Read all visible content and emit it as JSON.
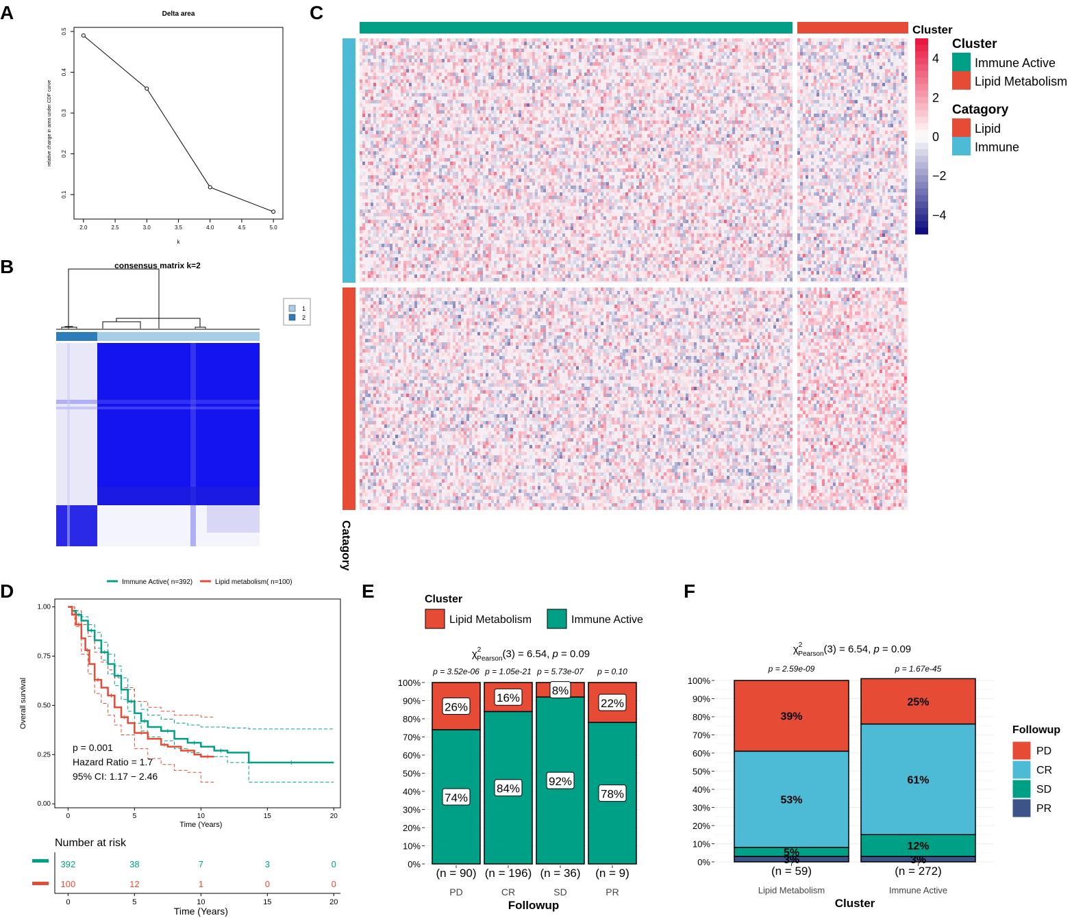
{
  "panels": {
    "A": "A",
    "B": "B",
    "C": "C",
    "D": "D",
    "E": "E",
    "F": "F"
  },
  "colors": {
    "immune_active": "#00A087",
    "lipid": "#E64B35",
    "cr": "#4DBBD5",
    "pr": "#3C5488",
    "consensus_dark": "#2E7DB9",
    "consensus_light": "#A8CDE6",
    "consensus_fill": "#1414F0",
    "hm_red": "#E8103A",
    "hm_blue": "#08087A"
  },
  "chart_data": [
    {
      "id": "A",
      "type": "line",
      "title": "Delta area",
      "xlabel": "k",
      "ylabel": "relative change in area under CDF curve",
      "x": [
        2,
        3,
        4,
        5
      ],
      "y": [
        0.49,
        0.36,
        0.118,
        0.058
      ],
      "xlim": [
        1.85,
        5.15
      ],
      "ylim": [
        0.04,
        0.51
      ],
      "xticks": [
        2.0,
        2.5,
        3.0,
        3.5,
        4.0,
        4.5,
        5.0
      ],
      "xtick_labels": [
        "2.0",
        "2.5",
        "3.0",
        "3.5",
        "4.0",
        "4.5",
        "5.0"
      ],
      "yticks": [
        0.1,
        0.2,
        0.3,
        0.4,
        0.5
      ],
      "ytick_labels": [
        "0.1",
        "0.2",
        "0.3",
        "0.4",
        "0.5"
      ]
    },
    {
      "id": "B",
      "type": "heatmap",
      "title": "consensus matrix k=2",
      "legend": [
        {
          "label": "1",
          "color": "#A8CDE6"
        },
        {
          "label": "2",
          "color": "#2E7DB9"
        }
      ]
    },
    {
      "id": "C",
      "type": "heatmap",
      "top_annotation_label": "Cluster",
      "side_annotation_label": "Catagory",
      "column_groups": [
        {
          "name": "Immune Active",
          "fraction": 0.8
        },
        {
          "name": "Lipid Metabolism",
          "fraction": 0.2
        }
      ],
      "row_groups": [
        {
          "name": "Immune",
          "fraction": 0.52
        },
        {
          "name": "Lipid",
          "fraction": 0.48
        }
      ],
      "colorbar": {
        "ticks": [
          4,
          2,
          0,
          -2,
          -4
        ],
        "tick_labels": [
          "4",
          "2",
          "0",
          "−2",
          "−4"
        ],
        "range": [
          -5,
          5
        ]
      },
      "legend": {
        "cluster_title": "Cluster",
        "cluster_items": [
          {
            "label": "Immune Active",
            "color": "#00A087"
          },
          {
            "label": "Lipid Metabolism",
            "color": "#E64B35"
          }
        ],
        "category_title": "Catagory",
        "category_items": [
          {
            "label": "Lipid",
            "color": "#E64B35"
          },
          {
            "label": "Immune",
            "color": "#4DBBD5"
          }
        ]
      }
    },
    {
      "id": "D",
      "type": "line",
      "xlabel": "Time (Years)",
      "ylabel": "Overall survival",
      "xlim": [
        -1,
        20.5
      ],
      "ylim": [
        -0.02,
        1.04
      ],
      "xticks": [
        0,
        5,
        10,
        15,
        20
      ],
      "xtick_labels": [
        "0",
        "5",
        "10",
        "15",
        "20"
      ],
      "yticks": [
        0,
        0.25,
        0.5,
        0.75,
        1
      ],
      "ytick_labels": [
        "0.00",
        "0.25",
        "0.50",
        "0.75",
        "1.00"
      ],
      "legend": [
        "Immune Active( n=392)",
        "Lipid metabolism( n=100)"
      ],
      "series": [
        {
          "name": "Immune Active( n=392)",
          "x": [
            0,
            0.3,
            0.6,
            1,
            1.5,
            2,
            2.5,
            3,
            3.5,
            4,
            4.5,
            5,
            5.5,
            6,
            7,
            8,
            9,
            10,
            11,
            12,
            13.6,
            20
          ],
          "y": [
            1,
            0.98,
            0.96,
            0.93,
            0.88,
            0.83,
            0.77,
            0.71,
            0.65,
            0.58,
            0.52,
            0.46,
            0.42,
            0.39,
            0.37,
            0.33,
            0.31,
            0.29,
            0.27,
            0.26,
            0.21,
            0.21
          ]
        },
        {
          "name": "Lipid metabolism( n=100)",
          "x": [
            0,
            0.3,
            0.6,
            1,
            1.3,
            1.6,
            2,
            2.5,
            3,
            3.5,
            4,
            4.5,
            5,
            6,
            7,
            7.5,
            8.5,
            9.5,
            10,
            11
          ],
          "y": [
            1,
            0.96,
            0.91,
            0.84,
            0.78,
            0.71,
            0.63,
            0.59,
            0.55,
            0.49,
            0.44,
            0.41,
            0.36,
            0.33,
            0.3,
            0.29,
            0.27,
            0.25,
            0.24,
            0.24
          ]
        }
      ],
      "ci": [
        {
          "series": "Immune Active( n=392)",
          "x": [
            0,
            0.5,
            1,
            1.5,
            2,
            2.5,
            3,
            3.5,
            4,
            4.5,
            5,
            5.5,
            6,
            7,
            8,
            9,
            10,
            12,
            13.6,
            20
          ],
          "upper": [
            1,
            0.98,
            0.95,
            0.91,
            0.87,
            0.82,
            0.76,
            0.7,
            0.64,
            0.58,
            0.52,
            0.48,
            0.45,
            0.43,
            0.41,
            0.4,
            0.39,
            0.385,
            0.38,
            0.38
          ],
          "lower": [
            1,
            0.96,
            0.91,
            0.85,
            0.79,
            0.73,
            0.66,
            0.6,
            0.53,
            0.47,
            0.41,
            0.37,
            0.34,
            0.32,
            0.28,
            0.26,
            0.24,
            0.21,
            0.11,
            0.11
          ]
        },
        {
          "series": "Lipid metabolism( n=100)",
          "x": [
            0,
            0.5,
            1,
            1.5,
            2,
            2.5,
            3,
            3.5,
            4,
            5,
            6,
            7,
            8,
            9,
            10,
            11
          ],
          "upper": [
            1,
            0.98,
            0.91,
            0.85,
            0.77,
            0.72,
            0.68,
            0.64,
            0.59,
            0.52,
            0.49,
            0.47,
            0.45,
            0.45,
            0.44,
            0.44
          ],
          "lower": [
            1,
            0.9,
            0.76,
            0.66,
            0.56,
            0.51,
            0.45,
            0.4,
            0.35,
            0.28,
            0.23,
            0.2,
            0.17,
            0.16,
            0.11,
            0.11
          ]
        }
      ],
      "annotations": [
        "p = 0.001",
        "Hazard Ratio = 1.7",
        "95% CI: 1.17 − 2.46"
      ],
      "risk_table": {
        "title": "Number at risk",
        "xlabel": "Time (Years)",
        "times": [
          0,
          5,
          10,
          15,
          20
        ],
        "rows": [
          {
            "name": "Immune Active( n=392)",
            "values": [
              "392",
              "38",
              "7",
              "3",
              "0"
            ]
          },
          {
            "name": "Lipid metabolism( n=100)",
            "values": [
              "100",
              "12",
              "1",
              "0",
              "0"
            ]
          }
        ]
      }
    },
    {
      "id": "E",
      "type": "bar",
      "xlabel": "Followup",
      "legend_title": "Cluster",
      "legend": [
        "Lipid Metabolism",
        "Immune Active"
      ],
      "stat": "χ²Pearson(3) = 6.54, p = 0.09",
      "stat_parts": {
        "chi": "χ",
        "sup": "2",
        "sub": "Pearson",
        "rest": "(3) = 6.54, ",
        "p": "p",
        "rest2": " = 0.09"
      },
      "categories": [
        "PD",
        "CR",
        "SD",
        "PR"
      ],
      "counts": [
        "(n = 90)",
        "(n = 196)",
        "(n = 36)",
        "(n = 9)"
      ],
      "pvalues": [
        "p = 3.52e-06",
        "p = 1.05e-21",
        "p = 5.73e-07",
        "p = 0.10"
      ],
      "series": [
        {
          "name": "Immune Active",
          "values": [
            74,
            84,
            92,
            78
          ],
          "labels": [
            "74%",
            "84%",
            "92%",
            "78%"
          ]
        },
        {
          "name": "Lipid Metabolism",
          "values": [
            26,
            16,
            8,
            22
          ],
          "labels": [
            "26%",
            "16%",
            "8%",
            "22%"
          ]
        }
      ],
      "ylim": [
        0,
        100
      ],
      "ytick_labels": [
        "0%",
        "10%",
        "20%",
        "30%",
        "40%",
        "50%",
        "60%",
        "70%",
        "80%",
        "90%",
        "100%"
      ]
    },
    {
      "id": "F",
      "type": "bar",
      "xlabel": "Cluster",
      "legend_title": "Followup",
      "legend": [
        "PD",
        "CR",
        "SD",
        "PR"
      ],
      "stat": "χ²Pearson(3) = 6.54, p = 0.09",
      "stat_parts": {
        "chi": "χ",
        "sup": "2",
        "sub": "Pearson",
        "rest": "(3) = 6.54, ",
        "p": "p",
        "rest2": " = 0.09"
      },
      "categories": [
        "Lipid Metabolism",
        "Immune Active"
      ],
      "counts": [
        "(n = 59)",
        "(n = 272)"
      ],
      "pvalues": [
        "p = 2.59e-09",
        "p = 1.67e-45"
      ],
      "series": [
        {
          "name": "PR",
          "values": [
            3,
            3
          ],
          "labels": [
            "3%",
            "3%"
          ]
        },
        {
          "name": "SD",
          "values": [
            5,
            12
          ],
          "labels": [
            "5%",
            "12%"
          ]
        },
        {
          "name": "CR",
          "values": [
            53,
            61
          ],
          "labels": [
            "53%",
            "61%"
          ]
        },
        {
          "name": "PD",
          "values": [
            39,
            25
          ],
          "labels": [
            "39%",
            "25%"
          ]
        }
      ],
      "ylim": [
        0,
        100
      ],
      "ytick_labels": [
        "0%",
        "10%",
        "20%",
        "30%",
        "40%",
        "50%",
        "60%",
        "70%",
        "80%",
        "90%",
        "100%"
      ]
    }
  ]
}
